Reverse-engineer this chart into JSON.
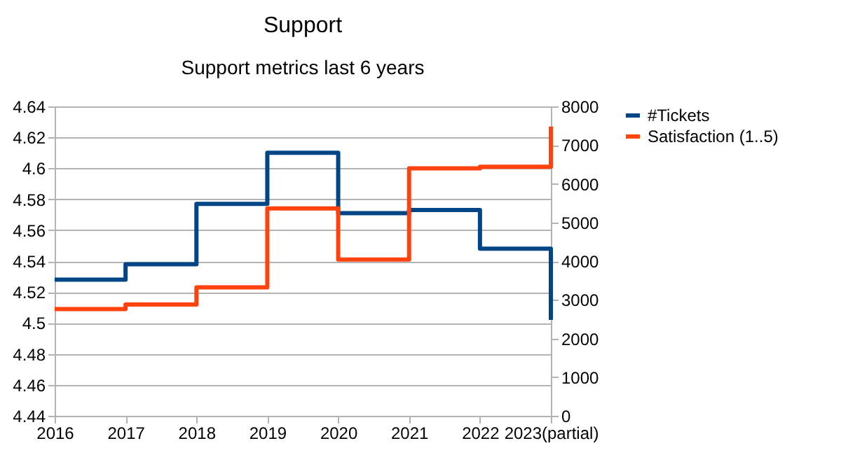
{
  "chart_data": {
    "type": "step",
    "title": "Support",
    "subtitle": "Support metrics last 6 years",
    "categories": [
      "2016",
      "2017",
      "2018",
      "2019",
      "2020",
      "2021",
      "2022",
      "2023(partial)"
    ],
    "series": [
      {
        "name": "#Tickets",
        "color": "#004586",
        "axis": "y2",
        "values": [
          3520,
          3920,
          5480,
          6800,
          5240,
          5320,
          4320,
          2480
        ]
      },
      {
        "name": "Satisfaction (1..5)",
        "color": "#ff420e",
        "values": [
          4.509,
          4.512,
          4.523,
          4.574,
          4.541,
          4.6,
          4.601,
          4.627
        ]
      }
    ],
    "ylim": [
      4.44,
      4.64
    ],
    "yticks": [
      4.44,
      4.46,
      4.48,
      4.5,
      4.52,
      4.54,
      4.56,
      4.58,
      4.6,
      4.62,
      4.64
    ],
    "y2lim": [
      0,
      8000
    ],
    "y2ticks": [
      0,
      1000,
      2000,
      3000,
      4000,
      5000,
      6000,
      7000,
      8000
    ],
    "grid": "y",
    "legend": "right"
  }
}
